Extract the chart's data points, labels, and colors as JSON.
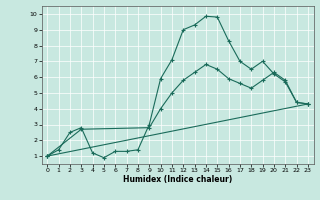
{
  "xlabel": "Humidex (Indice chaleur)",
  "xlim": [
    -0.5,
    23.5
  ],
  "ylim": [
    0.5,
    10.5
  ],
  "bg_color": "#c8e8e0",
  "line_color": "#1a6b5a",
  "curve1_x": [
    0,
    1,
    2,
    3,
    4,
    5,
    6,
    7,
    8,
    9,
    10,
    11,
    12,
    13,
    14,
    15,
    16,
    17,
    18,
    19,
    20,
    21,
    22,
    23
  ],
  "curve1_y": [
    1.0,
    1.4,
    2.5,
    2.8,
    1.2,
    0.9,
    1.3,
    1.3,
    1.4,
    3.0,
    5.9,
    7.1,
    9.0,
    9.3,
    9.85,
    9.8,
    8.3,
    7.0,
    6.5,
    7.0,
    6.2,
    5.7,
    4.4,
    4.3
  ],
  "curve2_x": [
    0,
    3,
    9,
    10,
    11,
    12,
    13,
    14,
    15,
    16,
    17,
    18,
    19,
    20,
    21,
    22,
    23
  ],
  "curve2_y": [
    1.0,
    2.7,
    2.8,
    4.0,
    5.0,
    5.8,
    6.3,
    6.8,
    6.5,
    5.9,
    5.6,
    5.3,
    5.8,
    6.3,
    5.8,
    4.4,
    4.3
  ],
  "curve3_x": [
    0,
    23
  ],
  "curve3_y": [
    1.0,
    4.3
  ],
  "xticks": [
    0,
    1,
    2,
    3,
    4,
    5,
    6,
    7,
    8,
    9,
    10,
    11,
    12,
    13,
    14,
    15,
    16,
    17,
    18,
    19,
    20,
    21,
    22,
    23
  ],
  "yticks": [
    1,
    2,
    3,
    4,
    5,
    6,
    7,
    8,
    9,
    10
  ],
  "markersize": 2.5,
  "linewidth": 0.8,
  "xlabel_fontsize": 5.5,
  "tick_fontsize": 4.5
}
